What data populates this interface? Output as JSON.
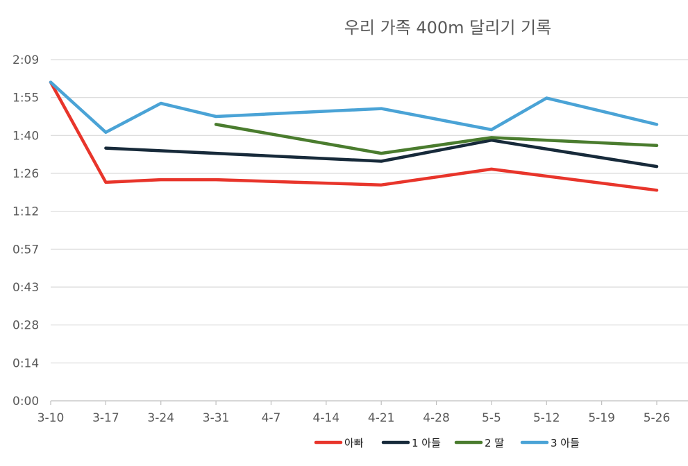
{
  "chart_data": {
    "type": "line",
    "title": "우리 가족 400m 달리기 기록",
    "xlabel": "",
    "ylabel": "",
    "categories": [
      "3-10",
      "3-17",
      "3-24",
      "3-31",
      "4-7",
      "4-14",
      "4-21",
      "4-28",
      "5-5",
      "5-12",
      "5-19",
      "5-26"
    ],
    "y_tick_labels": [
      "0:00",
      "0:14",
      "0:28",
      "0:43",
      "0:57",
      "1:12",
      "1:26",
      "1:40",
      "1:55",
      "2:09"
    ],
    "y_tick_values_seconds": [
      0,
      14.4,
      28.8,
      43.2,
      57.6,
      72,
      86.4,
      100.8,
      115.2,
      129.6
    ],
    "ylim_seconds": [
      0,
      129.6
    ],
    "grid": true,
    "legend_position": "bottom",
    "series": [
      {
        "name": "아빠",
        "color": "#e8352b",
        "values": [
          121,
          83,
          84,
          84,
          null,
          null,
          82,
          null,
          88,
          null,
          null,
          80
        ]
      },
      {
        "name": "1 아들",
        "color": "#172a3a",
        "values": [
          null,
          96,
          null,
          null,
          null,
          null,
          91,
          null,
          99,
          null,
          null,
          89
        ]
      },
      {
        "name": "2 딸",
        "color": "#4a7c2e",
        "values": [
          null,
          null,
          null,
          105,
          null,
          null,
          94,
          null,
          100,
          null,
          null,
          97
        ]
      },
      {
        "name": "3 아들",
        "color": "#4aa3d6",
        "values": [
          121,
          102,
          113,
          108,
          null,
          null,
          111,
          null,
          103,
          115,
          null,
          105
        ]
      }
    ]
  }
}
